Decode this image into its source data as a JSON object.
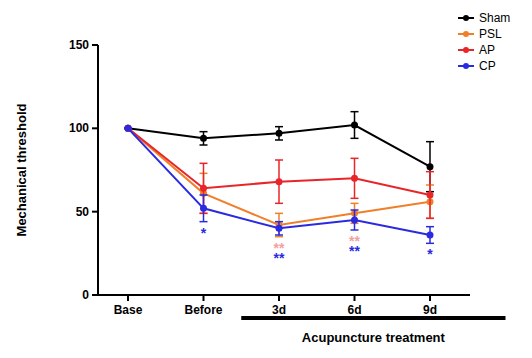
{
  "chart_data": {
    "type": "line",
    "y_label": "Mechanical threshold",
    "categories": [
      "Base",
      "Before",
      "3d",
      "6d",
      "9d"
    ],
    "ylim": [
      0,
      150
    ],
    "yticks": [
      0,
      50,
      100,
      150
    ],
    "grid": false,
    "legend": "top-right",
    "marker": "circle",
    "series": [
      {
        "name": "Sham",
        "color": "#000000",
        "values": [
          100,
          94,
          97,
          102,
          77
        ],
        "errors": [
          0,
          4,
          4,
          8,
          15
        ]
      },
      {
        "name": "PSL",
        "color": "#f07f2a",
        "values": [
          100,
          61,
          42,
          49,
          56
        ],
        "errors": [
          0,
          12,
          7,
          6,
          10
        ]
      },
      {
        "name": "AP",
        "color": "#e8262a",
        "values": [
          100,
          64,
          68,
          70,
          60
        ],
        "errors": [
          0,
          15,
          13,
          12,
          14
        ]
      },
      {
        "name": "CP",
        "color": "#2a2ae0",
        "values": [
          100,
          52,
          40,
          45,
          36
        ],
        "errors": [
          0,
          8,
          4,
          6,
          5
        ]
      }
    ],
    "annotations": [
      {
        "text": "*",
        "category": "Before",
        "color": "#2a2ae0"
      },
      {
        "text": "**",
        "category": "3d",
        "color": "#f4a0a0"
      },
      {
        "text": "**",
        "category": "3d",
        "color": "#2a2ae0"
      },
      {
        "text": "**",
        "category": "6d",
        "color": "#f4a0a0"
      },
      {
        "text": "**",
        "category": "6d",
        "color": "#2a2ae0"
      },
      {
        "text": "*",
        "category": "9d",
        "color": "#2a2ae0"
      },
      {
        "text": "Acupuncture treatment",
        "from": "3d",
        "to": "9d",
        "color": "#000000"
      }
    ]
  }
}
